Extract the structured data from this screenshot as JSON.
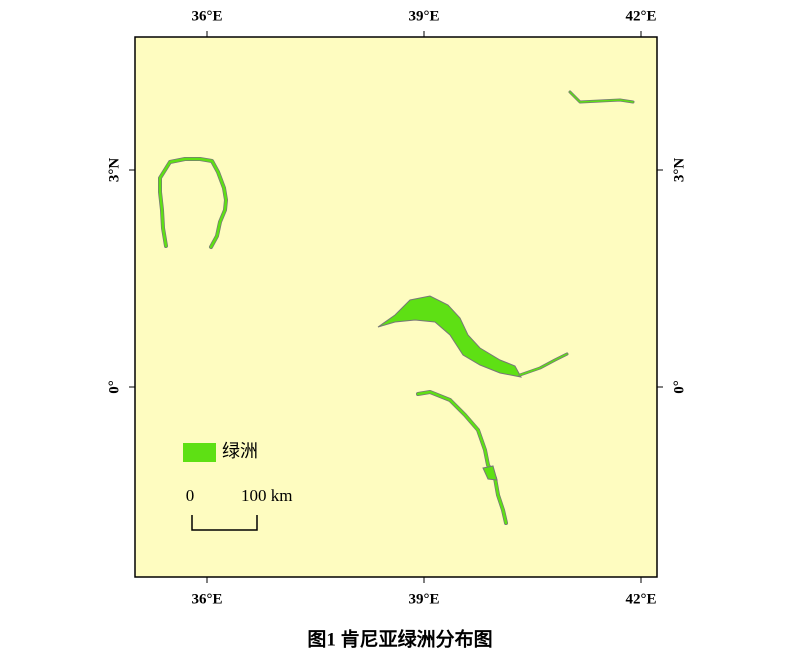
{
  "map": {
    "longitude_labels": [
      "36°E",
      "39°E",
      "42°E"
    ],
    "latitude_labels": [
      "3°N",
      "0°"
    ],
    "legend": {
      "label": "绿洲"
    },
    "scale_bar": {
      "start": "0",
      "end": "100 km"
    },
    "caption": "图1  肯尼亚绿洲分布图"
  }
}
